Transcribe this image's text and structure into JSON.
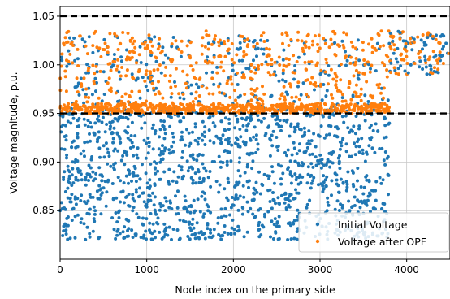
{
  "chart_data": {
    "type": "scatter",
    "title": "",
    "xlabel": "Node index on the primary side",
    "ylabel": "Voltage magnitude, p.u.",
    "xlim": [
      0,
      4500
    ],
    "ylim": [
      0.8,
      1.06
    ],
    "x_ticks": [
      0,
      1000,
      2000,
      3000,
      4000
    ],
    "x_tick_labels": [
      "0",
      "1000",
      "2000",
      "3000",
      "4000"
    ],
    "y_ticks": [
      0.85,
      0.9,
      0.95,
      1.0,
      1.05
    ],
    "y_tick_labels": [
      "0.85",
      "0.90",
      "0.95",
      "1.00",
      "1.05"
    ],
    "grid": true,
    "legend_position": "lower-right",
    "reference_lines": [
      {
        "y": 1.05,
        "style": "dashed",
        "color": "#000000"
      },
      {
        "y": 0.95,
        "style": "dashed",
        "color": "#000000"
      }
    ],
    "series": [
      {
        "name": "Initial Voltage",
        "color": "#1f77b4",
        "description_ranges": [
          {
            "x_range": [
              0,
              3800
            ],
            "y_range": [
              0.82,
              1.03
            ]
          },
          {
            "x_range": [
              3800,
              4500
            ],
            "y_range": [
              0.985,
              1.04
            ]
          }
        ]
      },
      {
        "name": "Voltage after OPF",
        "color": "#ff7f0e",
        "description_ranges": [
          {
            "x_range": [
              0,
              3800
            ],
            "y_range": [
              0.95,
              1.035
            ]
          },
          {
            "x_range": [
              3800,
              4500
            ],
            "y_range": [
              0.985,
              1.04
            ]
          }
        ]
      }
    ]
  }
}
